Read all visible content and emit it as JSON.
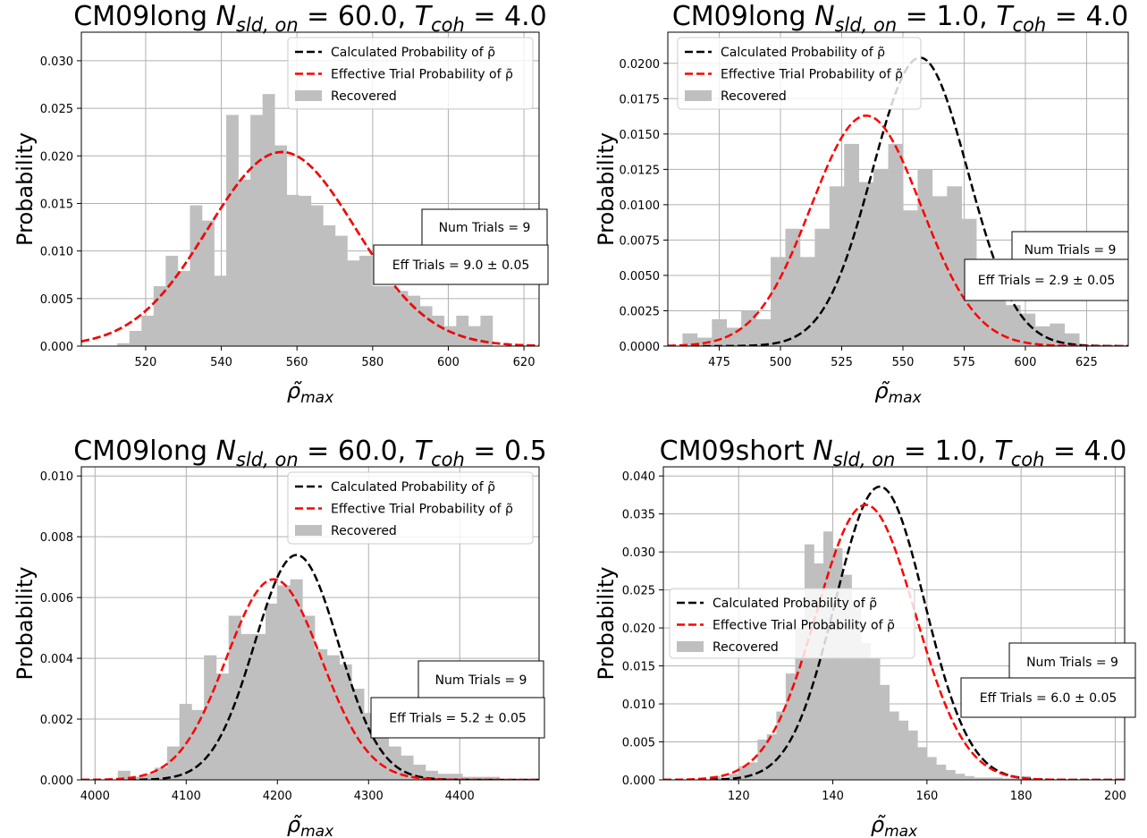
{
  "colors": {
    "calc": "#000000",
    "eff": "#ff0000",
    "hist": "#bfbfbf",
    "grid": "#b0b0b0"
  },
  "legend_labels": {
    "calc": "Calculated Probability of ρ̃",
    "eff": "Effective Trial Probability of ρ̃",
    "hist": "Recovered"
  },
  "chart_data": [
    {
      "type": "histogram+line",
      "title": {
        "prefix": "CM09long ",
        "n_value": "60.0",
        "t_value": "4.0"
      },
      "ylabel": "Probability",
      "xlabel": "ρ̃max",
      "xlim": [
        503,
        624
      ],
      "ylim": [
        0,
        0.033
      ],
      "xticks": [
        520,
        540,
        560,
        580,
        600,
        620
      ],
      "yticks": [
        0.0,
        0.005,
        0.01,
        0.015,
        0.02,
        0.025,
        0.03
      ],
      "ytick_labels": [
        "0.000",
        "0.005",
        "0.010",
        "0.015",
        "0.020",
        "0.025",
        "0.030"
      ],
      "hist": {
        "start": 512.5,
        "width": 3.2,
        "values": [
          0.0003,
          0.0016,
          0.0032,
          0.0063,
          0.0095,
          0.0079,
          0.0148,
          0.0132,
          0.0074,
          0.0243,
          0.0175,
          0.0243,
          0.0265,
          0.0211,
          0.0159,
          0.0158,
          0.0148,
          0.0127,
          0.0116,
          0.009,
          0.0095,
          0.0063,
          0.0063,
          0.0058,
          0.0053,
          0.0042,
          0.0032,
          0.0021,
          0.0032,
          0.0021,
          0.0032
        ]
      },
      "eff_curve": {
        "mu": 556,
        "sigma": 19.5,
        "peak": 0.0204
      },
      "calc_curve": {
        "mu": 556,
        "sigma": 19.5,
        "peak": 0.0204
      },
      "legend": "top-right",
      "annot": {
        "num_trials": "Num Trials = 9",
        "eff_trials": "Eff Trials = 9.0 ± 0.05"
      }
    },
    {
      "type": "histogram+line",
      "title": {
        "prefix": "CM09long ",
        "n_value": "1.0",
        "t_value": "4.0"
      },
      "ylabel": "Probability",
      "xlabel": "ρ̃max",
      "xlim": [
        454,
        642
      ],
      "ylim": [
        0,
        0.0222
      ],
      "xticks": [
        475,
        500,
        525,
        550,
        575,
        600,
        625
      ],
      "yticks": [
        0.0,
        0.0025,
        0.005,
        0.0075,
        0.01,
        0.0125,
        0.015,
        0.0175,
        0.02
      ],
      "ytick_labels": [
        "0.0000",
        "0.0025",
        "0.0050",
        "0.0075",
        "0.0100",
        "0.0125",
        "0.0150",
        "0.0175",
        "0.0200"
      ],
      "hist": {
        "start": 460,
        "width": 6,
        "values": [
          0.0009,
          0.0006,
          0.0019,
          0.0013,
          0.0025,
          0.0019,
          0.0063,
          0.0083,
          0.0063,
          0.0083,
          0.0113,
          0.0143,
          0.0116,
          0.0125,
          0.0143,
          0.0096,
          0.0125,
          0.0106,
          0.0113,
          0.009,
          0.0054,
          0.0036,
          0.0029,
          0.0023,
          0.0014,
          0.0016,
          0.0009
        ]
      },
      "eff_curve": {
        "mu": 535,
        "sigma": 22.5,
        "peak": 0.0163
      },
      "calc_curve": {
        "mu": 557,
        "sigma": 19.5,
        "peak": 0.0204
      },
      "legend": "top-left",
      "annot": {
        "num_trials": "Num Trials = 9",
        "eff_trials": "Eff Trials = 2.9 ± 0.05"
      }
    },
    {
      "type": "histogram+line",
      "title": {
        "prefix": "CM09long ",
        "n_value": "60.0",
        "t_value": "0.5"
      },
      "ylabel": "Probability",
      "xlabel": "ρ̃max",
      "xlim": [
        3985,
        4487
      ],
      "ylim": [
        0,
        0.0103
      ],
      "xticks": [
        4000,
        4100,
        4200,
        4300,
        4400
      ],
      "yticks": [
        0.0,
        0.002,
        0.004,
        0.006,
        0.008,
        0.01
      ],
      "ytick_labels": [
        "0.000",
        "0.002",
        "0.004",
        "0.006",
        "0.008",
        "0.010"
      ],
      "hist": {
        "start": 4025,
        "width": 13.5,
        "values": [
          0.0003,
          0.0001,
          0.0002,
          0.0004,
          0.0011,
          0.0025,
          0.0023,
          0.0041,
          0.0035,
          0.0054,
          0.0048,
          0.0048,
          0.0058,
          0.0064,
          0.0066,
          0.0054,
          0.0043,
          0.0041,
          0.0038,
          0.003,
          0.0022,
          0.0016,
          0.0011,
          0.0008,
          0.0005,
          0.0003,
          0.0002,
          0.0002,
          0.0001,
          0.0001,
          0.0001
        ]
      },
      "eff_curve": {
        "mu": 4196,
        "sigma": 52,
        "peak": 0.0066
      },
      "calc_curve": {
        "mu": 4221,
        "sigma": 46,
        "peak": 0.0074
      },
      "legend": "top-right",
      "annot": {
        "num_trials": "Num Trials = 9",
        "eff_trials": "Eff Trials = 5.2 ± 0.05"
      }
    },
    {
      "type": "histogram+line",
      "title": {
        "prefix": "CM09short ",
        "n_value": "1.0",
        "t_value": "4.0"
      },
      "ylabel": "Probability",
      "xlabel": "ρ̃max",
      "xlim": [
        104,
        202
      ],
      "ylim": [
        0,
        0.0412
      ],
      "xticks": [
        120,
        140,
        160,
        180,
        200
      ],
      "yticks": [
        0.0,
        0.005,
        0.01,
        0.015,
        0.02,
        0.025,
        0.03,
        0.035,
        0.04
      ],
      "ytick_labels": [
        "0.000",
        "0.005",
        "0.010",
        "0.015",
        "0.020",
        "0.025",
        "0.030",
        "0.035",
        "0.040"
      ],
      "hist": {
        "start": 114,
        "width": 2,
        "values": [
          0.0005,
          0.0003,
          0.0008,
          0.0018,
          0.0023,
          0.0053,
          0.006,
          0.009,
          0.014,
          0.02,
          0.031,
          0.0285,
          0.0327,
          0.0305,
          0.027,
          0.023,
          0.018,
          0.016,
          0.0125,
          0.009,
          0.0078,
          0.0065,
          0.0043,
          0.003,
          0.002,
          0.0013,
          0.0008,
          0.0005,
          0.0003,
          0.0003,
          0.0003,
          0.0002,
          0.0002,
          0.0005,
          0.0002
        ]
      },
      "eff_curve": {
        "mu": 147,
        "sigma": 10.5,
        "peak": 0.0362
      },
      "calc_curve": {
        "mu": 150,
        "sigma": 9.5,
        "peak": 0.0386
      },
      "legend": "center-left",
      "annot": {
        "num_trials": "Num Trials = 9",
        "eff_trials": "Eff Trials = 6.0 ± 0.05"
      }
    }
  ]
}
